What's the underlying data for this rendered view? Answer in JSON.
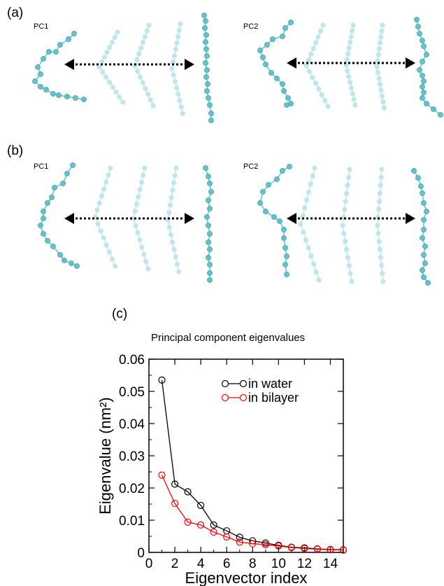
{
  "panels": {
    "a": {
      "label": "(a)",
      "pc1": "PC1",
      "pc2": "PC2"
    },
    "b": {
      "label": "(b)",
      "pc1": "PC1",
      "pc2": "PC2"
    },
    "c": {
      "label": "(c)"
    }
  },
  "colors": {
    "bead": "#5fc4cc",
    "bead_faded": "#bfe6ea",
    "arrow": "#000000",
    "water": "#000000",
    "bilayer": "#ff0000"
  },
  "chart_data": {
    "type": "line",
    "title": "Principal component eigenvalues",
    "xlabel": "Eigenvector index",
    "ylabel": "Eigenvalue (nm²)",
    "xlim": [
      0,
      15
    ],
    "ylim": [
      0,
      0.06
    ],
    "x_ticks": [
      "0",
      "2",
      "4",
      "6",
      "8",
      "10",
      "12",
      "14"
    ],
    "y_ticks": [
      "0",
      "0.01",
      "0.02",
      "0.03",
      "0.04",
      "0.05",
      "0.06"
    ],
    "x": [
      1,
      2,
      3,
      4,
      5,
      6,
      7,
      8,
      9,
      10,
      11,
      12,
      13,
      14,
      15
    ],
    "series": [
      {
        "name": "in water",
        "color": "#000000",
        "values": [
          0.0535,
          0.0212,
          0.0188,
          0.0146,
          0.0085,
          0.0067,
          0.0047,
          0.0036,
          0.0029,
          0.0022,
          0.0016,
          0.0014,
          0.0011,
          0.0009,
          0.0008
        ]
      },
      {
        "name": "in bilayer",
        "color": "#ff0000",
        "values": [
          0.024,
          0.0152,
          0.0094,
          0.0085,
          0.0063,
          0.0048,
          0.0032,
          0.0027,
          0.0024,
          0.002,
          0.0015,
          0.0012,
          0.001,
          0.0008,
          0.0007
        ]
      }
    ],
    "legend_position": "top-right",
    "grid": false
  }
}
